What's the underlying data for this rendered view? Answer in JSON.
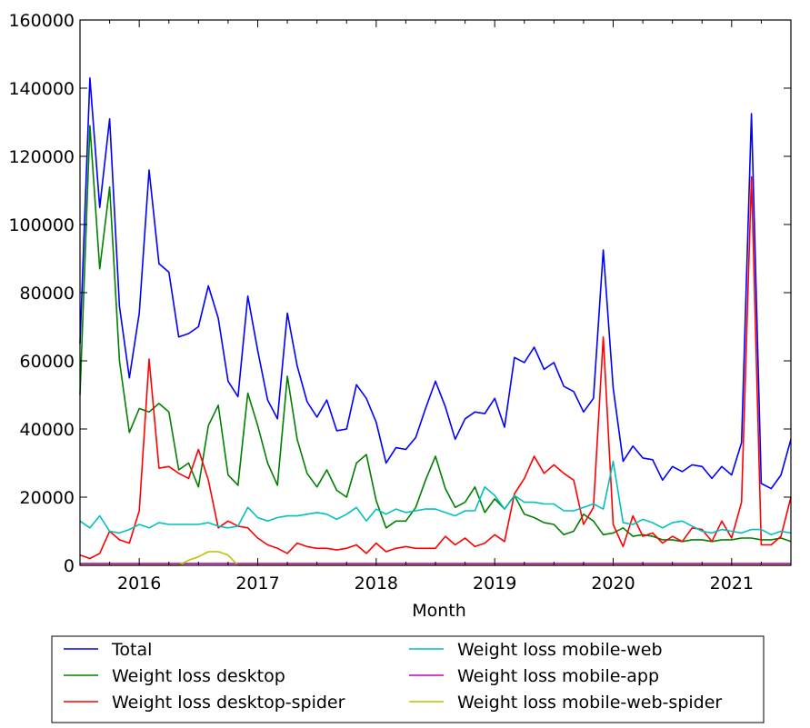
{
  "chart_data": {
    "type": "line",
    "title": "",
    "xlabel": "Month",
    "ylabel": "",
    "x_start": "2015-07",
    "x_frequency": "monthly",
    "xlim": [
      "2015-07",
      "2021-07"
    ],
    "ylim": [
      0,
      160000
    ],
    "x_ticks": [
      "2016",
      "2017",
      "2018",
      "2019",
      "2020",
      "2021"
    ],
    "y_ticks": [
      0,
      20000,
      40000,
      60000,
      80000,
      100000,
      120000,
      140000,
      160000
    ],
    "grid": false,
    "legend_position": "below",
    "series": [
      {
        "name": "Total",
        "color": "#0000ff",
        "values_thousands": [
          65,
          143,
          105,
          131,
          76,
          55,
          74,
          116,
          88.5,
          86,
          67,
          68,
          70,
          82,
          72.5,
          54,
          49.5,
          79,
          63,
          48.5,
          43,
          74,
          58.5,
          48,
          43.5,
          48.5,
          39.5,
          40,
          53,
          49,
          42,
          30,
          34.5,
          34,
          37.5,
          46,
          54,
          46.5,
          37,
          43,
          45,
          44.5,
          49,
          40.5,
          61,
          59.5,
          64,
          57.5,
          59.5,
          52.5,
          51,
          45,
          49,
          92.5,
          52,
          30.5,
          35,
          31.5,
          31,
          25,
          29,
          27.5,
          29.5,
          29,
          25.5,
          29,
          26.5,
          36,
          132.5,
          24,
          22.5,
          26.5,
          37
        ]
      },
      {
        "name": "Weight loss desktop",
        "color": "#008000",
        "values_thousands": [
          50,
          129,
          87,
          111,
          60,
          39,
          46,
          45,
          47.5,
          45,
          28,
          30,
          23,
          41,
          47,
          26.5,
          23.5,
          50.5,
          41,
          30,
          23.5,
          55.5,
          37,
          27,
          23,
          28,
          22,
          20,
          30,
          32.5,
          19,
          11,
          13,
          13,
          17,
          25,
          32,
          22.5,
          17,
          18.5,
          23,
          15.5,
          19.5,
          16.5,
          20.5,
          15,
          14,
          12.5,
          12,
          9,
          10,
          15,
          13,
          9,
          9.5,
          11,
          8.5,
          9,
          8.5,
          7.5,
          7.5,
          7,
          7.5,
          7.5,
          7,
          7.5,
          7.5,
          8,
          8,
          7.5,
          7.5,
          8,
          7
        ]
      },
      {
        "name": "Weight loss desktop-spider",
        "color": "#ff0000",
        "values_thousands": [
          3,
          2,
          3.5,
          10,
          7.5,
          6.5,
          16,
          60.5,
          28.5,
          29,
          27,
          25.5,
          34,
          25,
          11,
          13,
          11.5,
          11,
          8,
          6,
          5,
          3.5,
          6.5,
          5.5,
          5,
          5,
          4.5,
          5,
          6,
          3.5,
          6.5,
          4,
          5,
          5.5,
          5,
          5,
          5,
          8.5,
          6,
          8,
          5.5,
          6.5,
          9,
          7,
          21,
          25.5,
          32,
          27,
          29.5,
          27,
          25,
          12,
          17,
          67,
          12,
          5.5,
          14.5,
          8.5,
          9.5,
          6.5,
          8.5,
          7,
          11,
          10.5,
          7,
          13,
          8,
          18.5,
          114,
          6,
          6,
          8.5,
          20
        ]
      },
      {
        "name": "Weight loss mobile-web",
        "color": "#00bfbf",
        "values_thousands": [
          13,
          11,
          14.5,
          10,
          9.5,
          10.5,
          12,
          11,
          12.5,
          12,
          12,
          12,
          12,
          12.5,
          11.5,
          11,
          11.5,
          17,
          14,
          13,
          14,
          14.5,
          14.5,
          15,
          15.5,
          15,
          13.5,
          15,
          17,
          13,
          16.5,
          15,
          16.5,
          15.5,
          16,
          16.5,
          16.5,
          15.5,
          14.5,
          16,
          16,
          23,
          20.5,
          16.5,
          20.5,
          18.5,
          18.5,
          18,
          18,
          16,
          16,
          17,
          18,
          16.5,
          30.5,
          12.5,
          12,
          13.5,
          12.5,
          11,
          12.5,
          13,
          11.5,
          10,
          9.5,
          10.5,
          10,
          9.5,
          10.5,
          10.5,
          9,
          10,
          9.5
        ]
      },
      {
        "name": "Weight loss mobile-app",
        "color": "#bf00bf",
        "values_thousands": [
          0.5,
          0.5,
          0.5,
          0.5,
          0.5,
          0.5,
          0.5,
          0.5,
          0.5,
          0.5,
          0.5,
          0.5,
          0.5,
          0.5,
          0.5,
          0.5,
          0.5,
          0.5,
          0.5,
          0.5,
          0.5,
          0.5,
          0.5,
          0.5,
          0.5,
          0.5,
          0.5,
          0.5,
          0.5,
          0.5,
          0.5,
          0.5,
          0.5,
          0.5,
          0.5,
          0.5,
          0.5,
          0.5,
          0.5,
          0.5,
          0.5,
          0.5,
          0.5,
          0.5,
          0.5,
          0.5,
          0.5,
          0.5,
          0.5,
          0.5,
          0.5,
          0.5,
          0.5,
          0.5,
          0.5,
          0.5,
          0.5,
          0.5,
          0.5,
          0.5,
          0.5,
          0.5,
          0.5,
          0.5,
          0.5,
          0.5,
          0.5,
          0.5,
          0.5,
          0.5,
          0.5,
          0.5,
          0.5
        ]
      },
      {
        "name": "Weight loss mobile-web-spider",
        "color": "#bfbf00",
        "values_thousands": [
          0,
          0,
          0,
          0,
          0,
          0,
          0,
          0,
          0,
          0,
          0,
          1.5,
          2.5,
          4,
          4,
          3,
          0,
          0,
          0,
          0,
          0,
          0,
          0,
          0,
          0,
          0,
          0,
          0,
          0,
          0,
          0,
          0,
          0,
          0,
          0,
          0,
          0,
          0,
          0,
          0,
          0,
          0,
          0,
          0,
          0,
          0,
          0,
          0,
          0,
          0,
          0,
          0,
          0,
          0,
          0,
          0,
          0,
          0,
          0,
          0,
          0,
          0,
          0,
          0,
          0,
          0,
          0,
          0,
          0,
          0,
          0,
          0,
          0
        ]
      }
    ]
  }
}
